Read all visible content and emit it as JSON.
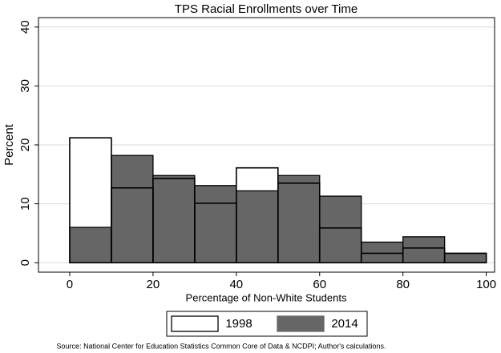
{
  "chart_data": {
    "type": "histogram",
    "title": "TPS Racial Enrollments over Time",
    "x_label": "Percentage of Non-White Students",
    "y_label": "Percent",
    "note": "Source: National Center for Education Statistics Common Core of Data & NCDPI; Author's calculations.",
    "bins": [
      0,
      10,
      20,
      30,
      40,
      50,
      60,
      70,
      80,
      90,
      100
    ],
    "series": [
      {
        "name": "1998",
        "color": "#ffffff",
        "values": [
          21.2,
          12.7,
          14.3,
          10.1,
          16.1,
          13.5,
          5.9,
          1.6,
          2.5,
          1.6
        ]
      },
      {
        "name": "2014",
        "color": "#666666",
        "values": [
          6.0,
          18.2,
          14.8,
          13.1,
          12.2,
          14.8,
          11.3,
          3.5,
          4.4,
          1.6
        ]
      }
    ],
    "xlim": [
      -7.5,
      102
    ],
    "ylim": [
      -1.6,
      41.6
    ],
    "xticks": [
      0,
      20,
      40,
      60,
      80,
      100
    ],
    "yticks": [
      0,
      10,
      20,
      30,
      40
    ],
    "grid": true,
    "legend": "bottom"
  }
}
